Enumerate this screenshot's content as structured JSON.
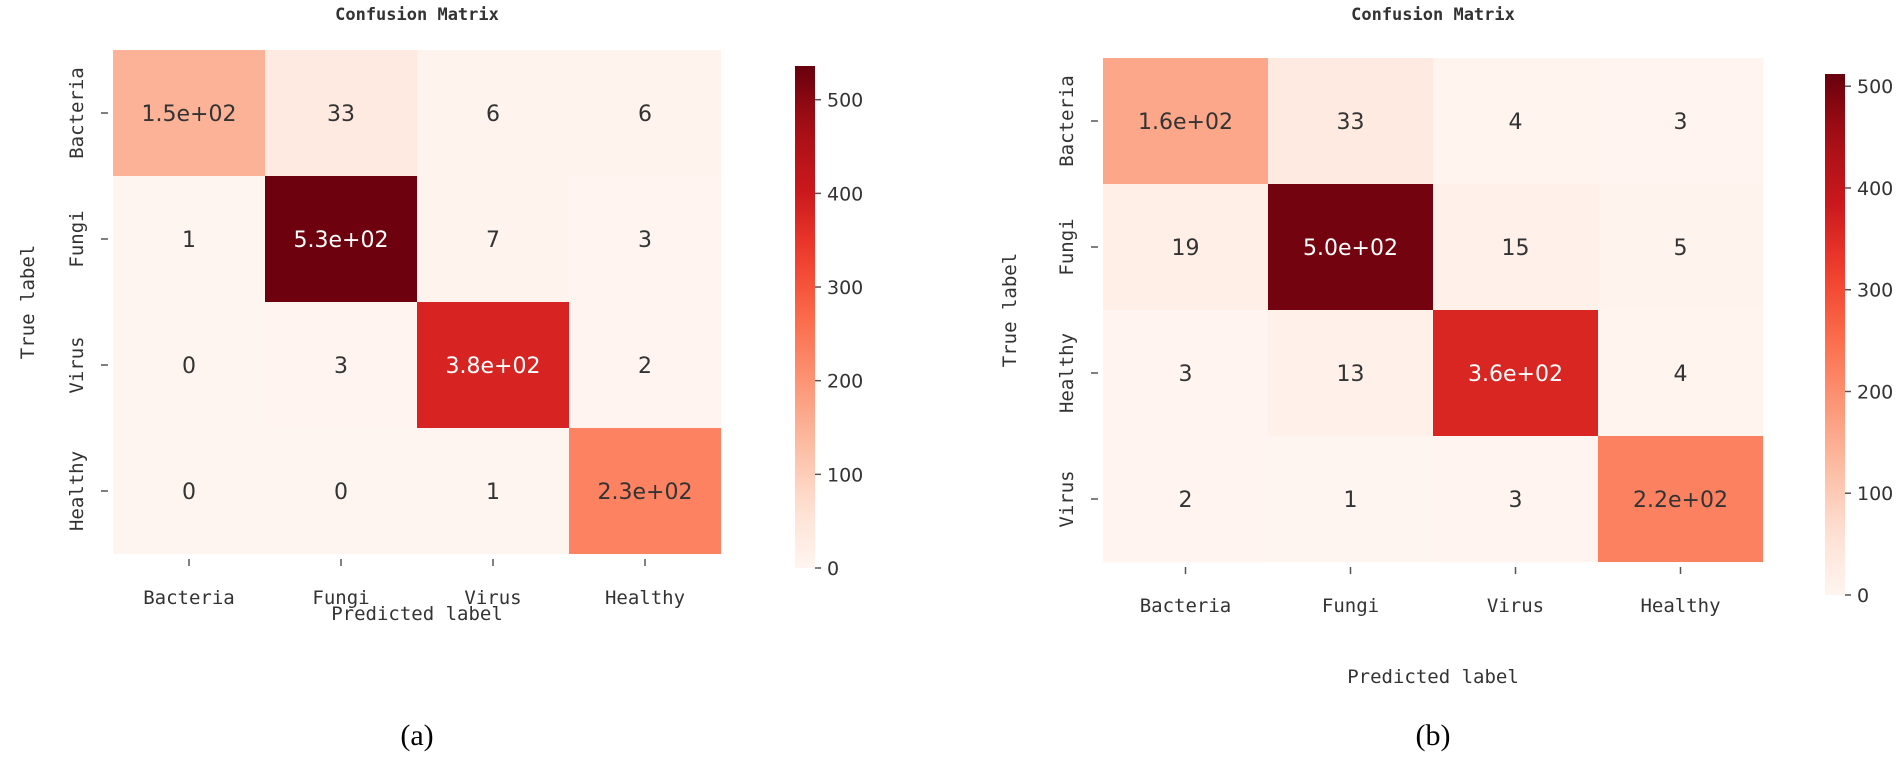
{
  "colors": {
    "cmap_low": "#fff5f0",
    "cmap_mid": "#ef3b2c",
    "cmap_high": "#67000d",
    "text_dark": "#333333",
    "text_light": "#ffffff"
  },
  "chart_data": [
    {
      "type": "heatmap",
      "panel_label": "(a)",
      "title": "Confusion Matrix",
      "xlabel": "Predicted label",
      "ylabel": "True label",
      "x_categories": [
        "Bacteria",
        "Fungi",
        "Virus",
        "Healthy"
      ],
      "y_categories": [
        "Bacteria",
        "Fungi",
        "Virus",
        "Healthy"
      ],
      "values": [
        [
          150,
          33,
          6,
          6
        ],
        [
          1,
          530,
          7,
          3
        ],
        [
          0,
          3,
          380,
          2
        ],
        [
          0,
          0,
          1,
          230
        ]
      ],
      "annotations": [
        [
          "1.5e+02",
          "33",
          "6",
          "6"
        ],
        [
          "1",
          "5.3e+02",
          "7",
          "3"
        ],
        [
          "0",
          "3",
          "3.8e+02",
          "2"
        ],
        [
          "0",
          "0",
          "1",
          "2.3e+02"
        ]
      ],
      "colorbar": {
        "min": 0,
        "max": 536,
        "ticks": [
          0,
          100,
          200,
          300,
          400,
          500
        ]
      }
    },
    {
      "type": "heatmap",
      "panel_label": "(b)",
      "title": "Confusion Matrix",
      "xlabel": "Predicted label",
      "ylabel": "True label",
      "x_categories": [
        "Bacteria",
        "Fungi",
        "Virus",
        "Healthy"
      ],
      "y_categories": [
        "Bacteria",
        "Fungi",
        "Healthy",
        "Virus"
      ],
      "values": [
        [
          160,
          33,
          4,
          3
        ],
        [
          19,
          500,
          15,
          5
        ],
        [
          3,
          13,
          360,
          4
        ],
        [
          2,
          1,
          3,
          220
        ]
      ],
      "annotations": [
        [
          "1.6e+02",
          "33",
          "4",
          "3"
        ],
        [
          "19",
          "5.0e+02",
          "15",
          "5"
        ],
        [
          "3",
          "13",
          "3.6e+02",
          "4"
        ],
        [
          "2",
          "1",
          "3",
          "2.2e+02"
        ]
      ],
      "colorbar": {
        "min": 0,
        "max": 512,
        "ticks": [
          0,
          100,
          200,
          300,
          400,
          500
        ]
      }
    }
  ]
}
